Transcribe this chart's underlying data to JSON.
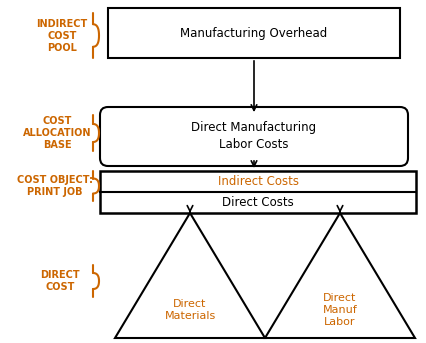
{
  "bg_color": "#ffffff",
  "label_color": "#cc6600",
  "box_edge_color": "#000000",
  "box_text_color": "#000000",
  "indirect_text_color": "#cc6600",
  "arrow_color": "#000000",
  "indirect_cost_pool_label": "INDIRECT\nCOST\nPOOL",
  "cost_allocation_base_label": "COST\nALLOCATION\nBASE",
  "cost_object_label": "COST OBJECT:\nPRINT JOB",
  "direct_cost_label": "DIRECT\nCOST",
  "manufacturing_overhead_text": "Manufacturing Overhead",
  "direct_mfg_labor_text": "Direct Manufacturing\nLabor Costs",
  "indirect_costs_text": "Indirect Costs",
  "direct_costs_text": "Direct Costs",
  "direct_materials_text": "Direct\nMaterials",
  "direct_manuf_labor_text": "Direct\nManuf\nLabor"
}
